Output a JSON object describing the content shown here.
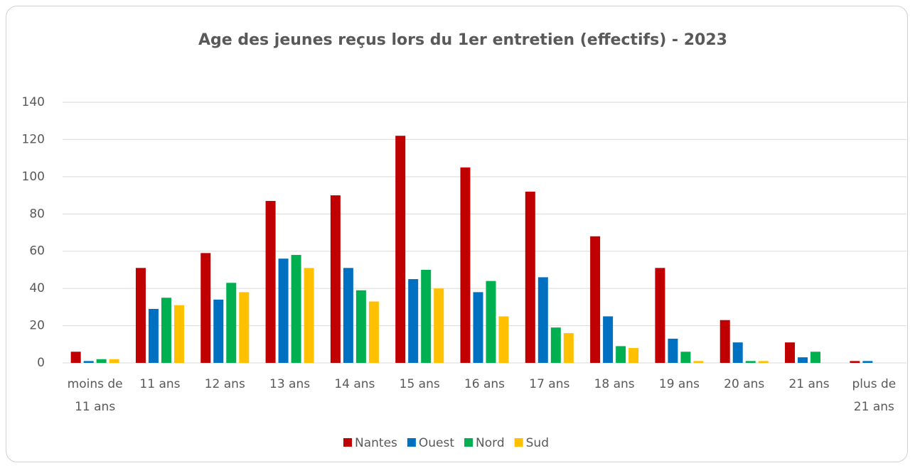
{
  "chart_data": {
    "type": "bar",
    "title": "Age des jeunes reçus lors du 1er entretien (effectifs) - 2023",
    "categories": [
      "moins de 11 ans",
      "11 ans",
      "12 ans",
      "13 ans",
      "14 ans",
      "15 ans",
      "16 ans",
      "17 ans",
      "18 ans",
      "19 ans",
      "20 ans",
      "21 ans",
      "plus de 21 ans"
    ],
    "series": [
      {
        "name": "Nantes",
        "color": "#c00000",
        "values": [
          6,
          51,
          59,
          87,
          90,
          122,
          105,
          92,
          68,
          51,
          23,
          11,
          1
        ]
      },
      {
        "name": "Ouest",
        "color": "#0070c0",
        "values": [
          1,
          29,
          34,
          56,
          51,
          45,
          38,
          46,
          25,
          13,
          11,
          3,
          1
        ]
      },
      {
        "name": "Nord",
        "color": "#00b050",
        "values": [
          2,
          35,
          43,
          58,
          39,
          50,
          44,
          19,
          9,
          6,
          1,
          6,
          0
        ]
      },
      {
        "name": "Sud",
        "color": "#ffc000",
        "values": [
          2,
          31,
          38,
          51,
          33,
          40,
          25,
          16,
          8,
          1,
          1,
          0,
          0
        ]
      }
    ],
    "ylim": [
      0,
      140
    ],
    "yticks": [
      0,
      20,
      40,
      60,
      80,
      100,
      120,
      140
    ],
    "grid": true,
    "legend": "bottom"
  }
}
